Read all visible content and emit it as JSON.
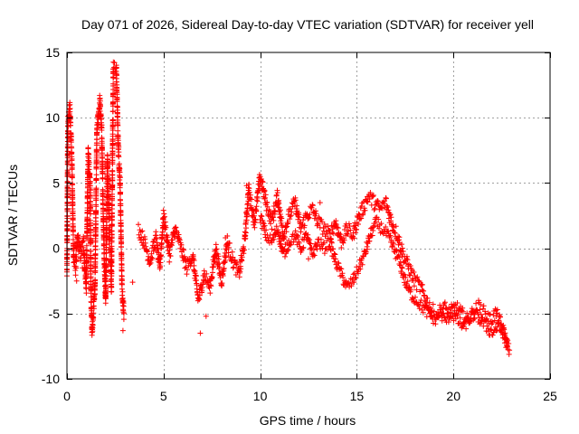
{
  "chart_data": {
    "type": "scatter",
    "title": "Day 071 of 2026, Sidereal Day-to-day VTEC variation (SDTVAR) for receiver yell",
    "xlabel": "GPS time / hours",
    "ylabel": "SDTVAR / TECUs",
    "xlim": [
      0,
      25
    ],
    "ylim": [
      -10,
      15
    ],
    "xticks": [
      0,
      5,
      10,
      15,
      20,
      25
    ],
    "yticks": [
      -10,
      -5,
      0,
      5,
      10,
      15
    ],
    "xtick_labels": [
      "0",
      "5",
      "10",
      "15",
      "20",
      "25"
    ],
    "ytick_labels": [
      "-10",
      "-5",
      "0",
      "5",
      "10",
      "15"
    ],
    "grid": true,
    "marker": "+",
    "series": [
      {
        "name": "SDTVAR",
        "color": "#ff0000",
        "trace": [
          [
            0.0,
            -2.0
          ],
          [
            0.05,
            9.5
          ],
          [
            0.15,
            10.8
          ],
          [
            0.25,
            7.0
          ],
          [
            0.3,
            3.0
          ],
          [
            0.35,
            -1.0
          ],
          [
            0.45,
            -1.5
          ],
          [
            0.55,
            0.8
          ],
          [
            0.7,
            -0.5
          ],
          [
            0.85,
            0.5
          ],
          [
            0.95,
            -2.0
          ],
          [
            1.0,
            -3.0
          ],
          [
            1.1,
            7.5
          ],
          [
            1.2,
            5.0
          ],
          [
            1.25,
            -4.0
          ],
          [
            1.3,
            -6.3
          ],
          [
            1.45,
            -3.0
          ],
          [
            1.55,
            9.0
          ],
          [
            1.7,
            11.3
          ],
          [
            1.8,
            9.0
          ],
          [
            1.9,
            1.0
          ],
          [
            2.0,
            -4.0
          ],
          [
            2.1,
            7.0
          ],
          [
            2.2,
            1.0
          ],
          [
            2.3,
            -3.0
          ],
          [
            2.4,
            13.8
          ],
          [
            2.55,
            14.0
          ],
          [
            2.65,
            8.0
          ],
          [
            2.75,
            5.0
          ],
          [
            2.85,
            -3.0
          ],
          [
            2.95,
            -5.0
          ]
        ],
        "trace2": [
          [
            3.7,
            1.5
          ],
          [
            4.0,
            0.5
          ],
          [
            4.3,
            -1.0
          ],
          [
            4.6,
            0.8
          ],
          [
            4.8,
            -1.5
          ],
          [
            5.0,
            2.5
          ],
          [
            5.3,
            -0.5
          ],
          [
            5.6,
            1.5
          ],
          [
            5.9,
            0.0
          ],
          [
            6.2,
            -1.5
          ],
          [
            6.5,
            -0.5
          ],
          [
            6.8,
            -4.0
          ],
          [
            7.1,
            -2.0
          ],
          [
            7.4,
            -3.0
          ],
          [
            7.7,
            0.0
          ],
          [
            8.0,
            -2.5
          ],
          [
            8.3,
            0.5
          ],
          [
            8.6,
            -1.0
          ],
          [
            8.9,
            -2.0
          ],
          [
            9.2,
            0.5
          ],
          [
            9.4,
            4.5
          ],
          [
            9.7,
            2.0
          ],
          [
            10.0,
            5.5
          ],
          [
            10.3,
            3.5
          ],
          [
            10.6,
            2.0
          ],
          [
            10.9,
            4.0
          ],
          [
            11.2,
            1.0
          ],
          [
            11.5,
            2.5
          ],
          [
            11.8,
            3.5
          ],
          [
            12.1,
            1.5
          ],
          [
            12.4,
            2.5
          ],
          [
            12.7,
            3.0
          ],
          [
            13.0,
            2.0
          ],
          [
            13.3,
            1.5
          ],
          [
            13.6,
            1.0
          ],
          [
            13.9,
            2.0
          ],
          [
            14.2,
            0.5
          ],
          [
            14.5,
            1.5
          ],
          [
            14.8,
            1.0
          ],
          [
            15.0,
            2.0
          ],
          [
            15.3,
            3.0
          ],
          [
            15.6,
            4.0
          ],
          [
            15.9,
            3.5
          ],
          [
            16.2,
            3.0
          ],
          [
            16.5,
            3.5
          ],
          [
            16.8,
            2.0
          ],
          [
            17.1,
            1.0
          ],
          [
            17.4,
            -0.5
          ],
          [
            17.7,
            -1.5
          ],
          [
            18.0,
            -2.5
          ],
          [
            18.3,
            -3.0
          ],
          [
            18.6,
            -4.0
          ],
          [
            18.9,
            -4.8
          ],
          [
            19.2,
            -5.0
          ],
          [
            19.5,
            -4.5
          ],
          [
            19.8,
            -5.0
          ],
          [
            20.1,
            -4.5
          ],
          [
            20.4,
            -5.0
          ],
          [
            20.7,
            -5.5
          ],
          [
            21.0,
            -5.0
          ],
          [
            21.3,
            -4.5
          ],
          [
            21.6,
            -5.0
          ],
          [
            21.9,
            -5.5
          ],
          [
            22.2,
            -5.0
          ],
          [
            22.5,
            -6.0
          ],
          [
            22.8,
            -7.5
          ]
        ],
        "trace3": [
          [
            10.0,
            2.5
          ],
          [
            10.3,
            1.0
          ],
          [
            10.6,
            0.5
          ],
          [
            10.9,
            1.5
          ],
          [
            11.2,
            -0.5
          ],
          [
            11.5,
            0.5
          ],
          [
            11.8,
            1.0
          ],
          [
            12.1,
            0.0
          ],
          [
            12.4,
            1.0
          ],
          [
            12.7,
            -0.5
          ],
          [
            13.0,
            0.5
          ],
          [
            13.3,
            0.0
          ],
          [
            13.6,
            0.5
          ],
          [
            13.9,
            -1.0
          ],
          [
            14.2,
            -2.0
          ],
          [
            14.5,
            -3.0
          ],
          [
            14.8,
            -2.5
          ],
          [
            15.1,
            -1.5
          ],
          [
            15.4,
            -0.5
          ],
          [
            15.7,
            1.0
          ],
          [
            16.0,
            2.0
          ],
          [
            16.3,
            1.5
          ],
          [
            16.6,
            1.0
          ],
          [
            16.9,
            0.0
          ],
          [
            17.2,
            -1.0
          ],
          [
            17.5,
            -2.5
          ],
          [
            17.8,
            -3.5
          ],
          [
            18.1,
            -4.0
          ],
          [
            18.4,
            -4.5
          ],
          [
            18.7,
            -5.0
          ],
          [
            19.0,
            -5.5
          ],
          [
            19.3,
            -5.0
          ],
          [
            19.6,
            -5.5
          ],
          [
            19.9,
            -5.0
          ],
          [
            20.2,
            -5.5
          ],
          [
            20.5,
            -6.0
          ],
          [
            20.8,
            -5.5
          ],
          [
            21.1,
            -5.0
          ],
          [
            21.4,
            -5.5
          ],
          [
            21.7,
            -6.0
          ],
          [
            22.0,
            -6.5
          ],
          [
            22.3,
            -6.0
          ],
          [
            22.6,
            -6.5
          ],
          [
            22.9,
            -7.8
          ]
        ],
        "extra": [
          [
            3.4,
            -2.6
          ],
          [
            6.9,
            -6.5
          ],
          [
            7.2,
            -5.2
          ],
          [
            9.3,
            4.8
          ],
          [
            12.5,
            -0.8
          ],
          [
            0.5,
            -2.5
          ],
          [
            2.9,
            -6.3
          ],
          [
            8.2,
            0.8
          ],
          [
            11.1,
            0.8
          ],
          [
            13.1,
            3.5
          ],
          [
            0.8,
            -1.5
          ]
        ]
      }
    ]
  }
}
